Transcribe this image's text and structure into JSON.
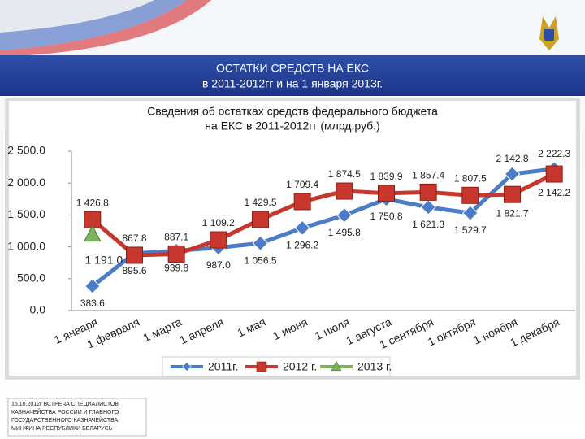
{
  "slide": {
    "header": [
      "ОСТАТКИ СРЕДСТВ НА ЕКС",
      "в 2011-2012гг и на 1 января 2013г."
    ],
    "footer": [
      "15.10.2012г ВСТРЕЧА СПЕЦИАЛИСТОВ",
      "КАЗНАЧЕЙСТВА РОССИИ И ГЛАВНОГО",
      "ГОСУДАРСТВЕННОГО КАЗНАЧЕЙСТВА",
      "МИНФИНА РЕСПУБЛИКИ БЕЛАРУСЬ"
    ]
  },
  "chart_data": {
    "type": "line",
    "title": [
      "Сведения об остатках средств федерального бюджета",
      "на ЕКС в 2011-2012гг (млрд.руб.)"
    ],
    "categories": [
      "1 января",
      "1 февраля",
      "1 марта",
      "1 апреля",
      "1 мая",
      "1 июня",
      "1 июля",
      "1 августа",
      "1 сентября",
      "1 октября",
      "1 ноября",
      "1 декабря"
    ],
    "ylim": [
      0,
      2500
    ],
    "yticks": [
      {
        "value": 0,
        "label": "0.0"
      },
      {
        "value": 500,
        "label": "500.0"
      },
      {
        "value": 1000,
        "label": "1 000.0"
      },
      {
        "value": 1500,
        "label": "1 500.0"
      },
      {
        "value": 2000,
        "label": "2 000.0"
      },
      {
        "value": 2500,
        "label": "2 500.0"
      }
    ],
    "legend": "bottom",
    "series": [
      {
        "name": "2011г.",
        "color": "#4a7cc7",
        "marker": "diamond",
        "values": [
          383.6,
          895.6,
          939.8,
          987.0,
          1056.5,
          1296.2,
          1495.8,
          1750.8,
          1621.3,
          1529.7,
          2142.8,
          2222.3
        ],
        "value_labels": [
          "383.6",
          "895.6",
          "939.8",
          "987.0",
          "1 056.5",
          "1 296.2",
          "1 495.8",
          "1 750.8",
          "1 621.3",
          "1 529.7",
          "2 142.8",
          "2 222.3"
        ]
      },
      {
        "name": "2012 г.",
        "color": "#c8372d",
        "marker": "square",
        "values": [
          1426.8,
          867.8,
          887.1,
          1109.2,
          1429.5,
          1709.4,
          1874.5,
          1839.9,
          1857.4,
          1807.5,
          1821.7,
          2142.2
        ],
        "value_labels": [
          "1 426.8",
          "867.8",
          "887.1",
          "1 109.2",
          "1 429.5",
          "1 709.4",
          "1 874.5",
          "1 839.9",
          "1 857.4",
          "1 807.5",
          "1 821.7",
          "2 142.2"
        ]
      },
      {
        "name": "2013 г.",
        "color": "#7bb35b",
        "marker": "triangle",
        "values": [
          1191.0,
          null,
          null,
          null,
          null,
          null,
          null,
          null,
          null,
          null,
          null,
          null
        ],
        "value_labels": [
          "1 191.0",
          null,
          null,
          null,
          null,
          null,
          null,
          null,
          null,
          null,
          null,
          null
        ]
      }
    ]
  }
}
